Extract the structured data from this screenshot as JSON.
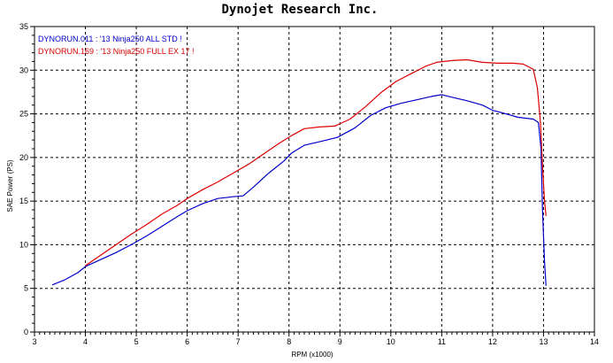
{
  "chart_data": {
    "type": "line",
    "title": "Dynojet  Research  Inc.",
    "xlabel": "RPM (x1000)",
    "ylabel": "SAE Power (PS)",
    "xlim": [
      3,
      14
    ],
    "ylim": [
      0,
      35
    ],
    "x_ticks": [
      3,
      4,
      5,
      6,
      7,
      8,
      9,
      10,
      11,
      12,
      13,
      14
    ],
    "y_ticks": [
      0,
      5,
      10,
      15,
      20,
      25,
      30,
      35
    ],
    "grid": true,
    "legend_position": "top-left",
    "series": [
      {
        "name": "DYNORUN.011 : '13 Ninja250 ALL STD !",
        "color": "#0000cc",
        "x": [
          3.35,
          3.6,
          3.85,
          4.0,
          4.3,
          4.6,
          4.9,
          5.2,
          5.5,
          5.8,
          6.0,
          6.3,
          6.6,
          6.9,
          7.1,
          7.3,
          7.6,
          7.9,
          8.05,
          8.3,
          8.6,
          8.95,
          9.3,
          9.6,
          9.9,
          10.2,
          10.5,
          10.8,
          11.0,
          11.2,
          11.5,
          11.8,
          12.0,
          12.2,
          12.5,
          12.8,
          12.9,
          12.95,
          12.98,
          13.02,
          13.05
        ],
        "y": [
          5.4,
          6.0,
          6.8,
          7.5,
          8.3,
          9.1,
          10.0,
          11.0,
          12.1,
          13.2,
          13.9,
          14.7,
          15.3,
          15.5,
          15.6,
          16.6,
          18.2,
          19.6,
          20.5,
          21.4,
          21.8,
          22.3,
          23.4,
          24.8,
          25.7,
          26.2,
          26.6,
          27.0,
          27.2,
          26.9,
          26.5,
          26.0,
          25.4,
          25.1,
          24.6,
          24.4,
          24.0,
          21.0,
          14.0,
          8.0,
          5.3
        ]
      },
      {
        "name": "DYNORUN.169 : '13 Ninja250 FULL EX 17 !",
        "color": "#dd0000",
        "x": [
          4.0,
          4.3,
          4.6,
          4.9,
          5.2,
          5.5,
          5.8,
          6.0,
          6.3,
          6.6,
          6.9,
          7.2,
          7.5,
          7.8,
          8.05,
          8.3,
          8.6,
          8.9,
          9.2,
          9.5,
          9.8,
          10.1,
          10.4,
          10.7,
          10.9,
          11.2,
          11.5,
          11.8,
          12.1,
          12.4,
          12.6,
          12.8,
          12.88,
          12.94,
          12.98,
          13.02,
          13.05
        ],
        "y": [
          7.6,
          8.8,
          10.0,
          11.2,
          12.3,
          13.5,
          14.5,
          15.3,
          16.3,
          17.2,
          18.2,
          19.2,
          20.4,
          21.6,
          22.5,
          23.3,
          23.5,
          23.6,
          24.4,
          25.8,
          27.4,
          28.7,
          29.6,
          30.5,
          30.9,
          31.1,
          31.2,
          30.9,
          30.8,
          30.8,
          30.7,
          30.1,
          28.0,
          24.0,
          19.0,
          15.0,
          13.3
        ]
      }
    ]
  }
}
